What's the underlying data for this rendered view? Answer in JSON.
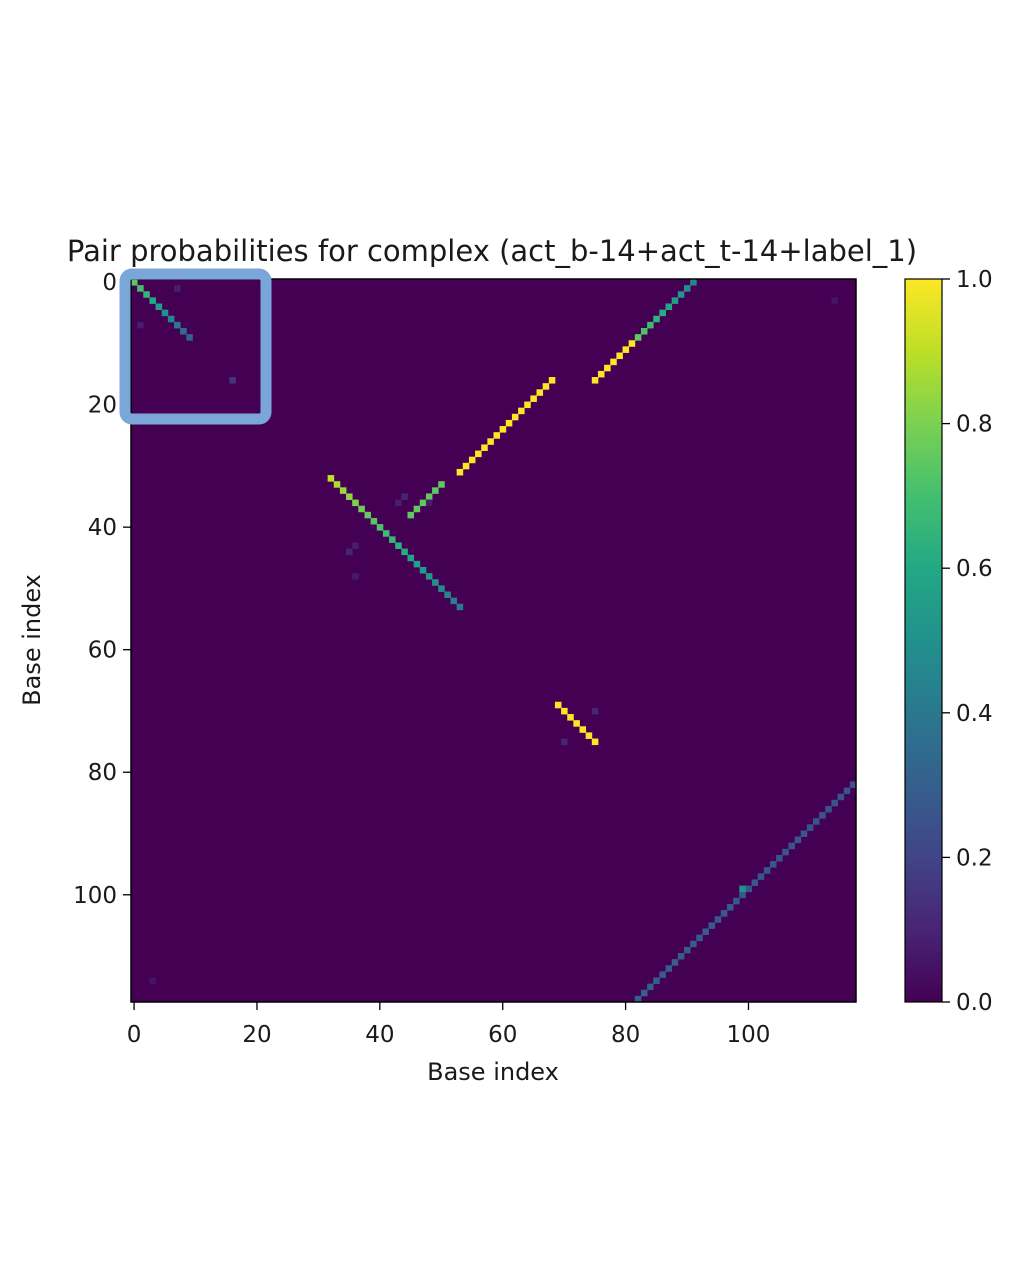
{
  "chart_data": {
    "type": "heatmap",
    "title": "Pair probabilities for complex (act_b-14+act_t-14+label_1)",
    "xlabel": "Base index",
    "ylabel": "Base index",
    "n": 118,
    "xlim": [
      -0.5,
      117.5
    ],
    "ylim": [
      117.5,
      -0.5
    ],
    "x_ticks": [
      0,
      20,
      40,
      60,
      80,
      100
    ],
    "y_ticks": [
      0,
      20,
      40,
      60,
      80,
      100
    ],
    "x_tick_labels": [
      "0",
      "20",
      "40",
      "60",
      "80",
      "100"
    ],
    "y_tick_labels": [
      "0",
      "20",
      "40",
      "60",
      "80",
      "100"
    ],
    "colormap": "viridis",
    "background_value": 0.0,
    "colorbar": {
      "range": [
        0.0,
        1.0
      ],
      "ticks": [
        0.0,
        0.2,
        0.4,
        0.6,
        0.8,
        1.0
      ],
      "tick_labels": [
        "0.0",
        "0.2",
        "0.4",
        "0.6",
        "0.8",
        "1.0"
      ]
    },
    "stems": [
      {
        "i_start": 0,
        "i_end": 9,
        "j_start": 91,
        "j_end": 82,
        "p_start": 0.45,
        "p_end": 0.75
      },
      {
        "i_start": 10,
        "i_end": 16,
        "j_start": 81,
        "j_end": 76,
        "p_start": 1.0,
        "p_end": 1.0
      },
      {
        "i_start": 16,
        "i_end": 31,
        "j_start": 68,
        "j_end": 53,
        "p_start": 1.0,
        "p_end": 1.0
      },
      {
        "i_start": 33,
        "i_end": 38,
        "j_start": 50,
        "j_end": 46,
        "p_start": 0.75,
        "p_end": 0.75
      },
      {
        "i_start": 82,
        "i_end": 117,
        "j_start": 117,
        "j_end": 82,
        "p_start": 0.25,
        "p_end": 0.3
      },
      {
        "i_start": 32,
        "i_end": 53,
        "j_start": 32,
        "j_end": 53,
        "p_start": 0.9,
        "p_end": 0.4
      },
      {
        "i_start": 69,
        "i_end": 75,
        "j_start": 69,
        "j_end": 75,
        "p_start": 1.0,
        "p_end": 1.0
      },
      {
        "i_start": 0,
        "i_end": 9,
        "j_start": 0,
        "j_end": 9,
        "p_start": 0.75,
        "p_end": 0.3
      }
    ],
    "points": [
      {
        "i": 99,
        "j": 99,
        "p": 0.5
      },
      {
        "i": 16,
        "j": 16,
        "p": 0.15
      },
      {
        "i": 1,
        "j": 7,
        "p": 0.08
      },
      {
        "i": 7,
        "j": 1,
        "p": 0.08
      },
      {
        "i": 35,
        "j": 44,
        "p": 0.1
      },
      {
        "i": 44,
        "j": 35,
        "p": 0.1
      },
      {
        "i": 36,
        "j": 43,
        "p": 0.08
      },
      {
        "i": 43,
        "j": 36,
        "p": 0.08
      },
      {
        "i": 70,
        "j": 75,
        "p": 0.1
      },
      {
        "i": 75,
        "j": 70,
        "p": 0.1
      },
      {
        "i": 36,
        "j": 48,
        "p": 0.07
      },
      {
        "i": 48,
        "j": 36,
        "p": 0.07
      },
      {
        "i": 114,
        "j": 3,
        "p": 0.05
      },
      {
        "i": 3,
        "j": 114,
        "p": 0.05
      }
    ]
  }
}
